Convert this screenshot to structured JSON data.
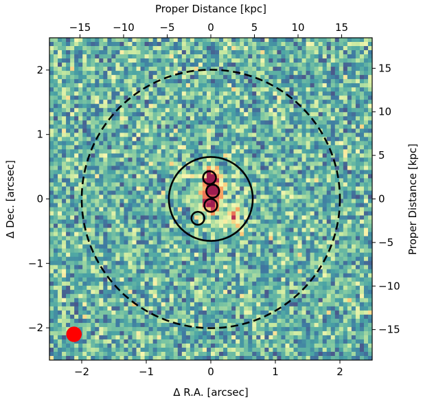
{
  "chart_data": {
    "type": "heatmap",
    "title": "",
    "xlabel": "Δ R.A. [arcsec]",
    "ylabel": "Δ Dec. [arcsec]",
    "x2label": "Proper Distance [kpc]",
    "y2label": "Proper Distance [kpc]",
    "xlim": [
      -2.5,
      2.5
    ],
    "ylim": [
      -2.5,
      2.5
    ],
    "xticks": [
      -2,
      -1,
      0,
      1,
      2
    ],
    "yticks": [
      -2,
      -1,
      0,
      1,
      2
    ],
    "xticklabels": [
      "−2",
      "−1",
      "0",
      "1",
      "2"
    ],
    "yticklabels": [
      "−2",
      "−1",
      "0",
      "1",
      "2"
    ],
    "x2lim": [
      -18.5,
      18.5
    ],
    "y2lim": [
      -18.5,
      18.5
    ],
    "x2ticks": [
      -15,
      -10,
      -5,
      0,
      5,
      10,
      15
    ],
    "y2ticks": [
      -15,
      -10,
      -5,
      0,
      5,
      10,
      15
    ],
    "x2ticklabels": [
      "−15",
      "−10",
      "−5",
      "0",
      "5",
      "10",
      "15"
    ],
    "y2ticklabels": [
      "−15",
      "−10",
      "−5",
      "0",
      "5",
      "10",
      "15"
    ],
    "grid": false,
    "colormap": [
      "#4a5a8c",
      "#3f7aa2",
      "#4aa3a4",
      "#7dc6a2",
      "#c7e9a0",
      "#f7f7b0",
      "#fbc878",
      "#f58a55",
      "#d5485a",
      "#9e1d4f"
    ],
    "background_level": 0.28,
    "emission_peaks": [
      {
        "x": 0.0,
        "y": 0.32,
        "strength": 0.85
      },
      {
        "x": 0.03,
        "y": 0.12,
        "strength": 0.8
      },
      {
        "x": 0.0,
        "y": -0.1,
        "strength": 0.7
      },
      {
        "x": 0.35,
        "y": -0.3,
        "strength": 0.35
      }
    ],
    "circles": [
      {
        "name": "outer-aperture",
        "x": 0.0,
        "y": 0.0,
        "r": 2.0,
        "style": "dashed",
        "color": "#000000"
      },
      {
        "name": "inner-aperture",
        "x": 0.0,
        "y": 0.0,
        "r": 0.65,
        "style": "solid",
        "color": "#000000"
      }
    ],
    "clumps": [
      {
        "x": -0.02,
        "y": 0.33,
        "r": 0.1
      },
      {
        "x": 0.03,
        "y": 0.12,
        "r": 0.1
      },
      {
        "x": 0.0,
        "y": -0.1,
        "r": 0.1
      },
      {
        "x": -0.2,
        "y": -0.3,
        "r": 0.1
      }
    ],
    "beam": {
      "x": -2.12,
      "y": -2.1,
      "r": 0.12,
      "color": "#ff0000"
    }
  }
}
